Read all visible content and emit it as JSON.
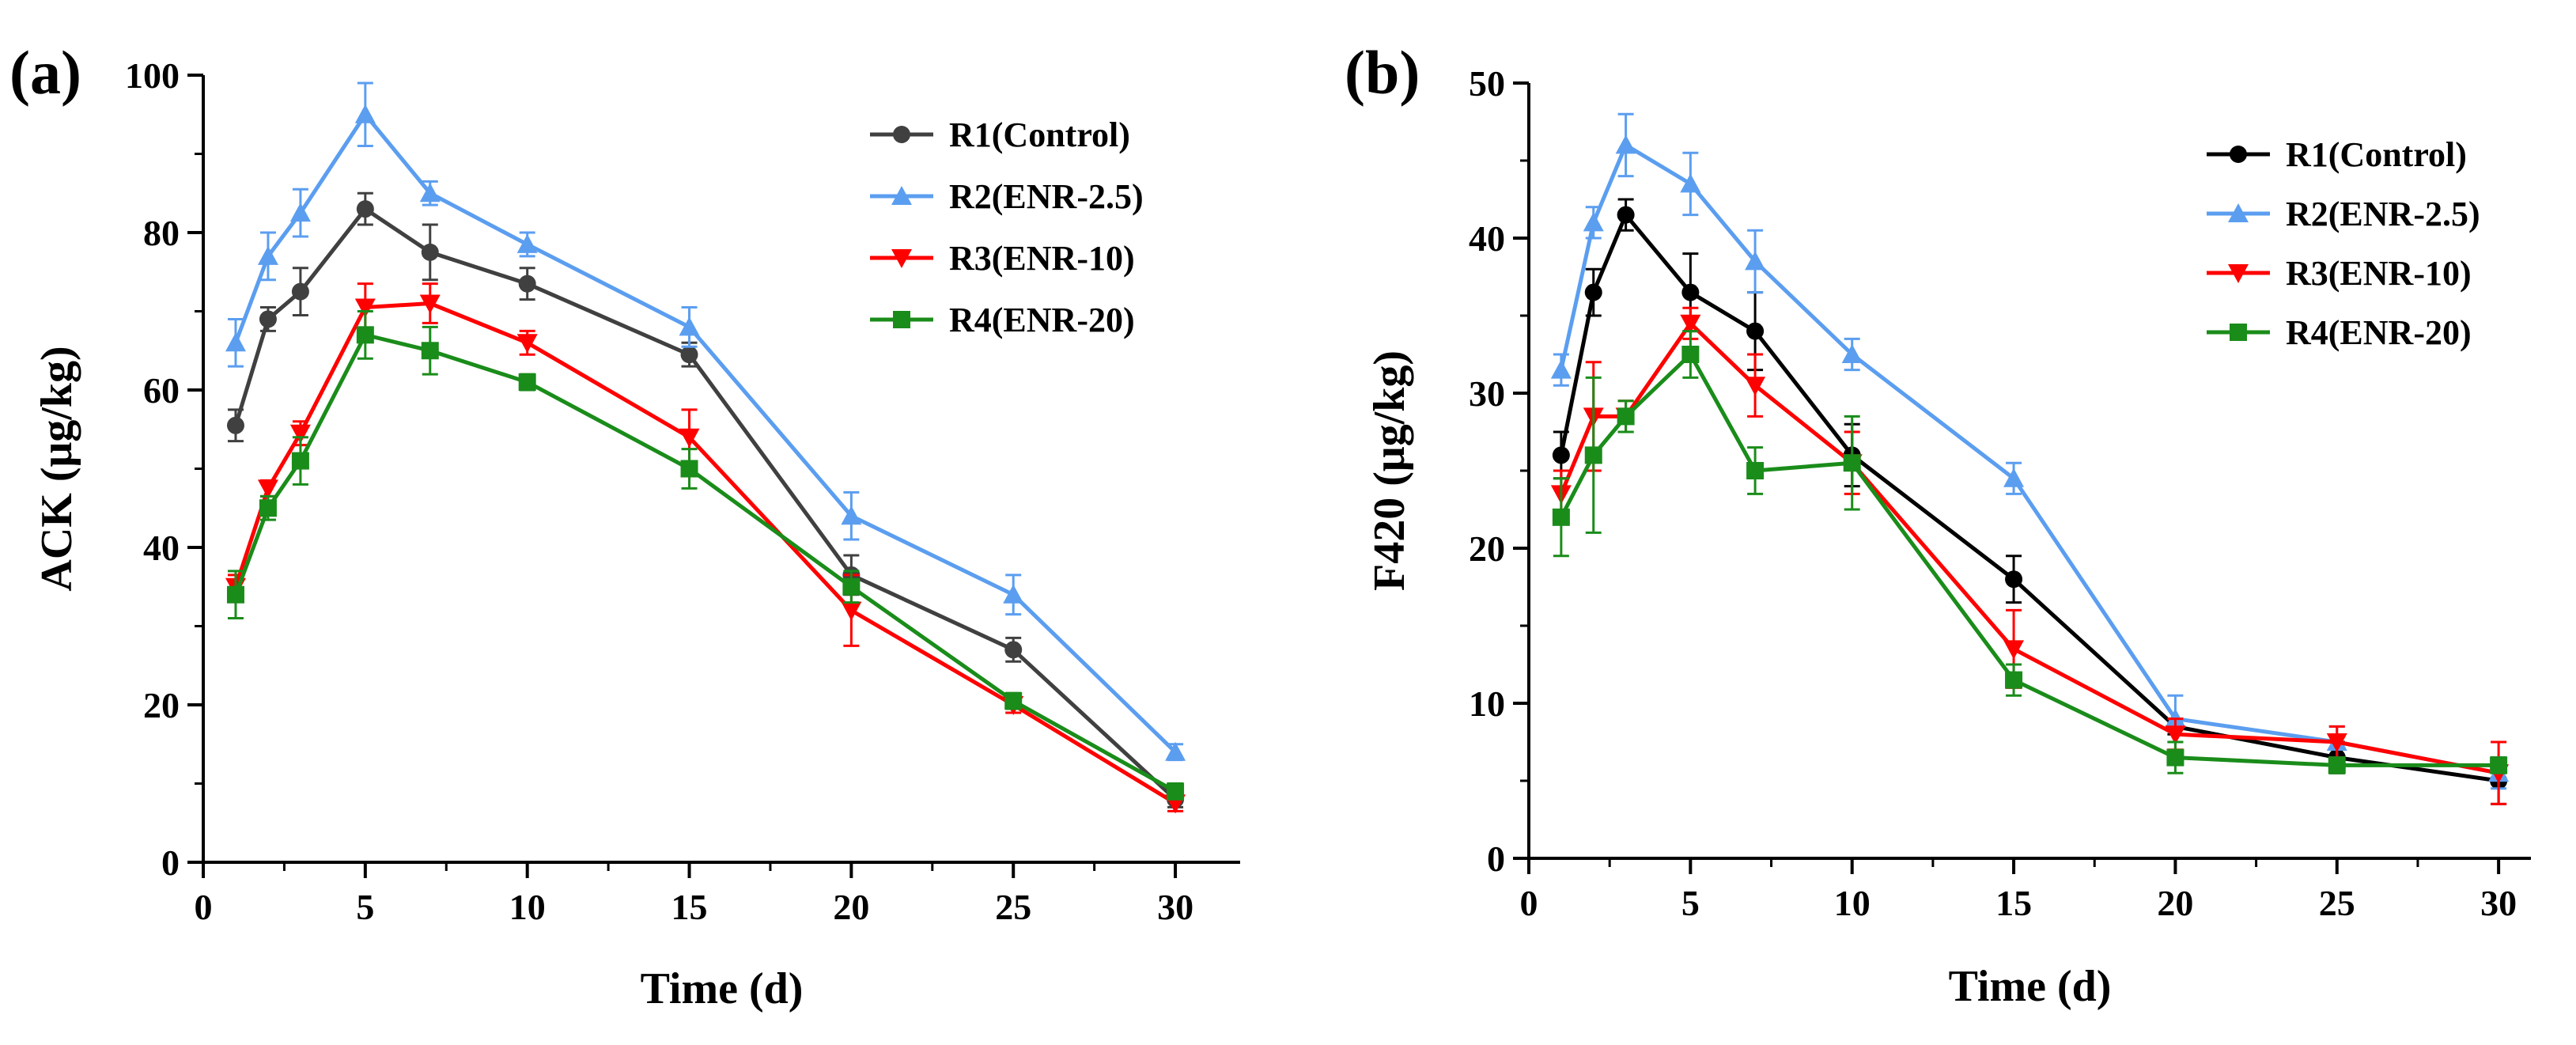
{
  "chart_data": [
    {
      "type": "line",
      "panel_label": "(a)",
      "xlabel": "Time (d)",
      "ylabel": "ACK (μg/kg)",
      "xlim": [
        0,
        32
      ],
      "ylim": [
        0,
        100
      ],
      "xticks": [
        0,
        5,
        10,
        15,
        20,
        25,
        30
      ],
      "yticks": [
        0,
        20,
        40,
        60,
        80,
        100
      ],
      "grid": false,
      "legend_position": "top-right",
      "x": [
        1,
        2,
        3,
        5,
        7,
        10,
        15,
        20,
        25,
        30
      ],
      "series": [
        {
          "name": "R1(Control)",
          "color": "#404040",
          "marker": "circle",
          "values": [
            55.5,
            69,
            72.5,
            83,
            77.5,
            73.5,
            64.5,
            36.5,
            27,
            8
          ],
          "errors": [
            2,
            1.5,
            3,
            2,
            3.5,
            2,
            1.5,
            2.5,
            1.5,
            1
          ]
        },
        {
          "name": "R2(ENR-2.5)",
          "color": "#5b9ef0",
          "marker": "triangle-up",
          "values": [
            66,
            77,
            82.5,
            95,
            85,
            78.5,
            68,
            44,
            34,
            14
          ],
          "errors": [
            3,
            3,
            3,
            4,
            1.5,
            1.5,
            2.5,
            3,
            2.5,
            1
          ]
        },
        {
          "name": "R3(ENR-10)",
          "color": "#ff0000",
          "marker": "triangle-down",
          "values": [
            35,
            47.5,
            54.5,
            70.5,
            71,
            66,
            54,
            32,
            20,
            7.5
          ],
          "errors": [
            1.5,
            1,
            1.5,
            3,
            2.5,
            1.5,
            3.5,
            4.5,
            1,
            1
          ]
        },
        {
          "name": "R4(ENR-20)",
          "color": "#1a8c1a",
          "marker": "square",
          "values": [
            34,
            45,
            51,
            67,
            65,
            61,
            50,
            35,
            20.5,
            9
          ],
          "errors": [
            3,
            1.5,
            3,
            3,
            3,
            1,
            2.5,
            2,
            1,
            1
          ]
        }
      ]
    },
    {
      "type": "line",
      "panel_label": "(b)",
      "xlabel": "Time (d)",
      "ylabel": "F420 (μg/kg)",
      "xlim": [
        0,
        31
      ],
      "ylim": [
        0,
        50
      ],
      "xticks": [
        0,
        5,
        10,
        15,
        20,
        25,
        30
      ],
      "yticks": [
        0,
        10,
        20,
        30,
        40,
        50
      ],
      "grid": false,
      "legend_position": "top-right",
      "x": [
        1,
        2,
        3,
        5,
        7,
        10,
        15,
        20,
        25,
        30
      ],
      "series": [
        {
          "name": "R1(Control)",
          "color": "#000000",
          "marker": "circle",
          "values": [
            26,
            36.5,
            41.5,
            36.5,
            34,
            26,
            18,
            8.5,
            6.5,
            5
          ],
          "errors": [
            1.5,
            1.5,
            1,
            2.5,
            2.5,
            2,
            1.5,
            0.5,
            1,
            1.5
          ]
        },
        {
          "name": "R2(ENR-2.5)",
          "color": "#5b9ef0",
          "marker": "triangle-up",
          "values": [
            31.5,
            41,
            46,
            43.5,
            38.5,
            32.5,
            24.5,
            9,
            7.5,
            5.5
          ],
          "errors": [
            1,
            1,
            2,
            2,
            2,
            1,
            1,
            1.5,
            1,
            1
          ]
        },
        {
          "name": "R3(ENR-10)",
          "color": "#ff0000",
          "marker": "triangle-down",
          "values": [
            23.5,
            28.5,
            28.5,
            34.5,
            30.5,
            25.5,
            13.5,
            8,
            7.5,
            5.5
          ],
          "errors": [
            1.5,
            3.5,
            1,
            1,
            2,
            2,
            2.5,
            1,
            1,
            2
          ]
        },
        {
          "name": "R4(ENR-20)",
          "color": "#1a8c1a",
          "marker": "square",
          "values": [
            22,
            26,
            28.5,
            32.5,
            25,
            25.5,
            11.5,
            6.5,
            6,
            6
          ],
          "errors": [
            2.5,
            5,
            1,
            1.5,
            1.5,
            3,
            1,
            1,
            0.5,
            0.5
          ]
        }
      ]
    }
  ]
}
